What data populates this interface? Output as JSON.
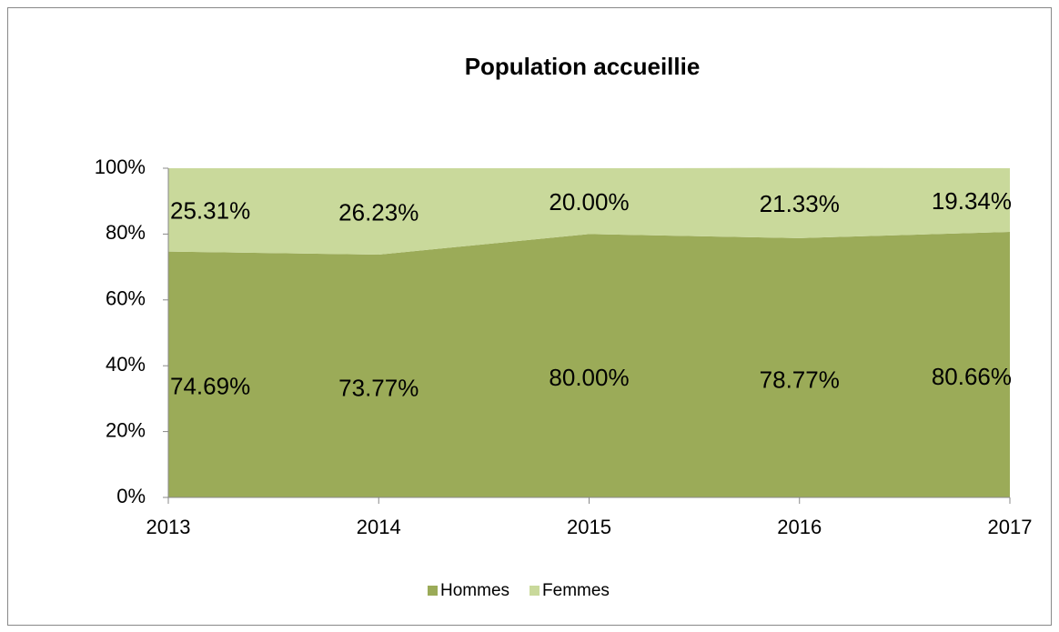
{
  "chart_data": {
    "type": "stacked_area",
    "title": "Population accueillie",
    "categories": [
      "2013",
      "2014",
      "2015",
      "2016",
      "2017"
    ],
    "series": [
      {
        "name": "Hommes",
        "color": "#9bab58",
        "values": [
          74.69,
          73.77,
          80.0,
          78.77,
          80.66
        ],
        "value_labels": [
          "74.69%",
          "73.77%",
          "80.00%",
          "78.77%",
          "80.66%"
        ]
      },
      {
        "name": "Femmes",
        "color": "#c9d99b",
        "values": [
          25.31,
          26.23,
          20.0,
          21.33,
          19.34
        ],
        "value_labels": [
          "25.31%",
          "26.23%",
          "20.00%",
          "21.33%",
          "19.34%"
        ]
      }
    ],
    "ylim": [
      0,
      100
    ],
    "yticks": [
      {
        "value": 0,
        "label": "0%"
      },
      {
        "value": 20,
        "label": "20%"
      },
      {
        "value": 40,
        "label": "40%"
      },
      {
        "value": 60,
        "label": "60%"
      },
      {
        "value": 80,
        "label": "80%"
      },
      {
        "value": 100,
        "label": "100%"
      }
    ],
    "legend": "bottom"
  }
}
